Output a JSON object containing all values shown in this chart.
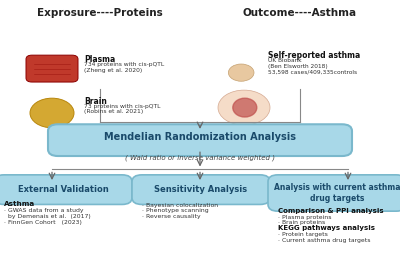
{
  "bg_color": "#ffffff",
  "title_left": "Exprosure----Proteins",
  "title_right": "Outcome----Asthma",
  "plasma_label": "Plasma",
  "plasma_text": "734 proteins with cis-pQTL\n(Zheng et al. 2020)",
  "brain_label": "Brain",
  "brain_text": "73 proteins with cis-pQTL\n(Robins et al. 2021)",
  "asthma_label": "Self-reported asthma",
  "asthma_text": "UK Biobank\n(Ben Elsworth 2018)\n53,598 cases/409,335controls",
  "mr_title": "Mendelian Randomization Analysis",
  "mr_subtitle": "( Wald ratio or inverse variance weighted )",
  "box1_title": "External Validation",
  "box1_text1": "Asthma",
  "box1_text2": "· GWAS data from a study\n  by Demenais et al.  (2017)\n· FinnGen Cohort   (2023)",
  "box2_title": "Sensitivity Analysis",
  "box2_text": "· Bayesian colocalization\n· Phenotype scanning\n· Reverse causality",
  "box3_title": "Analysis with current asthma\ndrug targets",
  "box3_text1": "Comparison & PPI analysis",
  "box3_text2": "· Plasma proteins\n· Brain proteins",
  "box3_text3": "KEGG pathways analysis",
  "box3_text4": "· Protein targets\n· Current asthma drug targets",
  "box_bg": "#a8d8e8",
  "box_ec": "#7ab8cc",
  "arrow_color": "#666666",
  "line_color": "#888888",
  "title_color": "#222222",
  "bold_color": "#111111",
  "text_color": "#333333",
  "mr_text_color": "#1a4a6a",
  "box_text_color": "#1a4a6a",
  "plasma_icon_color": "#c0392b",
  "brain_icon_color": "#d4a832"
}
